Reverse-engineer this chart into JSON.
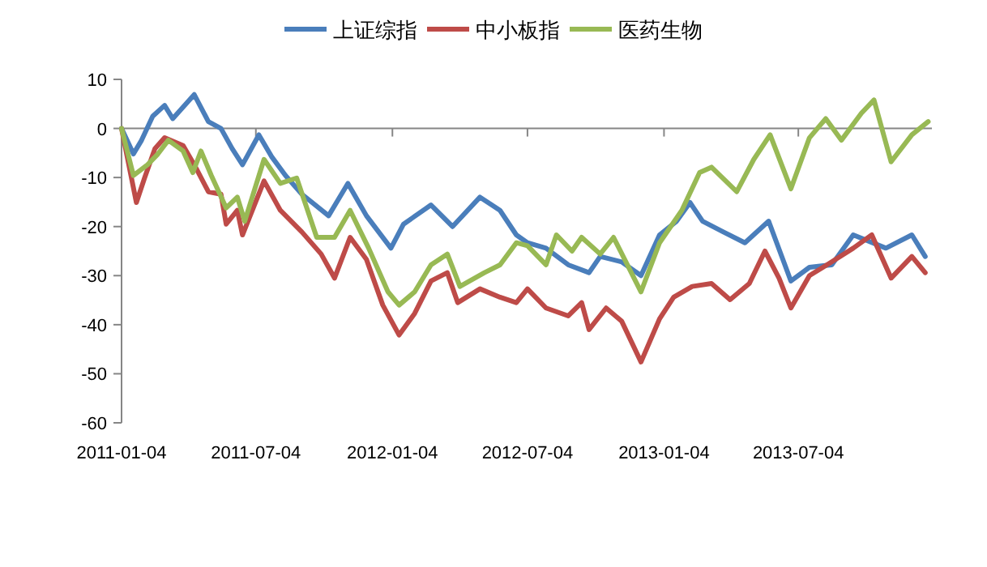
{
  "chart_data": {
    "type": "line",
    "legend": "top",
    "line_style": "solid",
    "marker": "none",
    "xlim": [
      "2011-01-04",
      "2013-12-31"
    ],
    "xticks": [
      "2011-01-04",
      "2011-07-04",
      "2012-01-04",
      "2012-07-04",
      "2013-01-04",
      "2013-07-04"
    ],
    "ylim": [
      -60,
      10
    ],
    "yticks": [
      -60,
      -50,
      -40,
      -30,
      -20,
      -10,
      0,
      10
    ],
    "series": [
      {
        "name": "上证综指",
        "color": "#4a7ebb",
        "x": [
          "2011-01-04",
          "2011-01-20",
          "2011-01-31",
          "2011-02-15",
          "2011-03-03",
          "2011-03-14",
          "2011-04-12",
          "2011-05-01",
          "2011-05-18",
          "2011-06-02",
          "2011-06-16",
          "2011-07-08",
          "2011-07-25",
          "2011-08-13",
          "2011-09-04",
          "2011-10-10",
          "2011-11-05",
          "2011-11-30",
          "2012-01-02",
          "2012-01-19",
          "2012-02-25",
          "2012-03-25",
          "2012-05-01",
          "2012-05-28",
          "2012-06-19",
          "2012-07-04",
          "2012-07-29",
          "2012-08-28",
          "2012-09-25",
          "2012-10-10",
          "2012-11-08",
          "2012-12-04",
          "2012-12-29",
          "2013-01-21",
          "2013-02-08",
          "2013-02-25",
          "2013-03-25",
          "2013-04-23",
          "2013-05-25",
          "2013-06-24",
          "2013-07-19",
          "2013-08-18",
          "2013-09-16",
          "2013-10-30",
          "2013-12-04",
          "2013-12-22"
        ],
        "values": [
          0,
          -5.2,
          -2.4,
          2.5,
          4.7,
          2,
          6.9,
          1.4,
          0,
          -4.1,
          -7.4,
          -1.3,
          -5.7,
          -9.6,
          -13.4,
          -17.8,
          -11.2,
          -17.8,
          -24.4,
          -19.5,
          -15.6,
          -20,
          -14,
          -16.7,
          -21.7,
          -23.3,
          -24.4,
          -27.8,
          -29.4,
          -26.1,
          -27.2,
          -30,
          -21.7,
          -18.9,
          -15.1,
          -18.9,
          -21.1,
          -23.3,
          -18.9,
          -31.1,
          -28.3,
          -27.8,
          -21.7,
          -24.4,
          -21.7,
          -26.1
        ]
      },
      {
        "name": "中小板指",
        "color": "#be4b48",
        "x": [
          "2011-01-04",
          "2011-01-24",
          "2011-02-04",
          "2011-02-18",
          "2011-03-03",
          "2011-03-28",
          "2011-04-12",
          "2011-05-01",
          "2011-05-18",
          "2011-05-25",
          "2011-06-09",
          "2011-06-16",
          "2011-07-15",
          "2011-08-06",
          "2011-09-04",
          "2011-09-30",
          "2011-10-18",
          "2011-11-08",
          "2011-11-30",
          "2011-12-22",
          "2012-01-13",
          "2012-02-03",
          "2012-02-25",
          "2012-03-18",
          "2012-04-01",
          "2012-05-01",
          "2012-05-28",
          "2012-06-19",
          "2012-07-04",
          "2012-07-29",
          "2012-08-28",
          "2012-09-15",
          "2012-09-25",
          "2012-10-18",
          "2012-11-08",
          "2012-12-04",
          "2012-12-29",
          "2013-01-17",
          "2013-02-11",
          "2013-03-09",
          "2013-04-03",
          "2013-04-29",
          "2013-05-20",
          "2013-06-08",
          "2013-06-24",
          "2013-07-19",
          "2013-08-18",
          "2013-09-16",
          "2013-10-11",
          "2013-11-06",
          "2013-12-04",
          "2013-12-22"
        ],
        "values": [
          0,
          -15.1,
          -10.1,
          -4.1,
          -1.9,
          -3.5,
          -7.4,
          -12.9,
          -13.4,
          -19.5,
          -16.7,
          -21.7,
          -10.7,
          -16.7,
          -21.1,
          -25.6,
          -30.5,
          -22.2,
          -26.7,
          -36,
          -42.1,
          -37.7,
          -31.1,
          -29.4,
          -35.5,
          -32.7,
          -34.4,
          -35.5,
          -32.7,
          -36.6,
          -38.2,
          -35.5,
          -41,
          -36.6,
          -39.3,
          -47.6,
          -38.8,
          -34.4,
          -32.2,
          -31.6,
          -34.9,
          -31.6,
          -25,
          -30.5,
          -36.6,
          -30,
          -27.2,
          -24.4,
          -21.7,
          -30.5,
          -26.1,
          -29.4
        ]
      },
      {
        "name": "医药生物",
        "color": "#98b954",
        "x": [
          "2011-01-04",
          "2011-01-20",
          "2011-02-08",
          "2011-02-22",
          "2011-03-08",
          "2011-03-28",
          "2011-04-10",
          "2011-04-21",
          "2011-05-05",
          "2011-05-25",
          "2011-06-09",
          "2011-06-19",
          "2011-07-15",
          "2011-08-06",
          "2011-08-28",
          "2011-09-24",
          "2011-10-18",
          "2011-11-08",
          "2011-12-03",
          "2011-12-29",
          "2012-01-13",
          "2012-02-03",
          "2012-02-25",
          "2012-03-18",
          "2012-04-04",
          "2012-05-07",
          "2012-05-28",
          "2012-06-19",
          "2012-07-04",
          "2012-07-29",
          "2012-08-12",
          "2012-09-02",
          "2012-09-15",
          "2012-10-10",
          "2012-10-28",
          "2012-12-04",
          "2012-12-29",
          "2013-01-28",
          "2013-02-21",
          "2013-03-09",
          "2013-04-12",
          "2013-05-05",
          "2013-05-27",
          "2013-06-24",
          "2013-07-19",
          "2013-08-10",
          "2013-08-31",
          "2013-09-27",
          "2013-10-14",
          "2013-11-06",
          "2013-12-04",
          "2013-12-26"
        ],
        "values": [
          0,
          -9.6,
          -7.4,
          -5.2,
          -2.4,
          -4.6,
          -9,
          -4.6,
          -9.6,
          -16.2,
          -14,
          -18.9,
          -6.3,
          -11.2,
          -10.1,
          -22.2,
          -22.2,
          -16.7,
          -24.4,
          -33.3,
          -36,
          -33.3,
          -27.8,
          -25.6,
          -32.2,
          -29.4,
          -27.8,
          -23.3,
          -23.9,
          -27.8,
          -21.7,
          -25,
          -22.2,
          -25.6,
          -22.2,
          -33.3,
          -23.3,
          -16.7,
          -9,
          -7.9,
          -12.9,
          -6.3,
          -1.3,
          -12.3,
          -1.9,
          2,
          -2.4,
          3.1,
          5.8,
          -6.8,
          -1.3,
          1.4
        ]
      }
    ]
  }
}
